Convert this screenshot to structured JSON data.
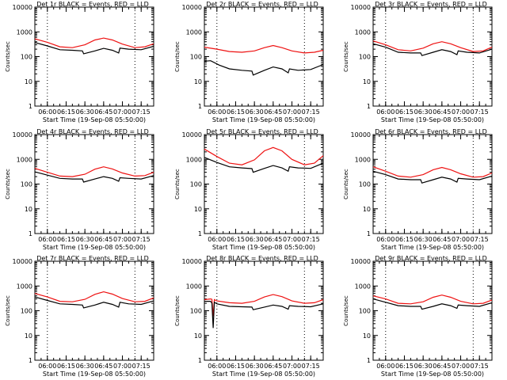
{
  "colors": {
    "events": "#000000",
    "lld": "#ee1111",
    "axes": "#000000",
    "background": "#ffffff"
  },
  "chart_data": [
    {
      "type": "line",
      "title": "Det 1r BLACK = Events, RED = LLD",
      "xlabel": "Start Time (19-Sep-08 05:50:00)",
      "ylabel": "Counts/sec",
      "yscale": "log",
      "ylim": [
        1,
        10000
      ],
      "xlim": [
        "05:50",
        "07:25"
      ],
      "xticks": [
        "06:00",
        "06:15",
        "06:30",
        "06:45",
        "07:00",
        "07:15"
      ],
      "yticks": [
        "1",
        "10",
        "100",
        "1000",
        "10000"
      ],
      "vlines": [
        "06:00",
        "07:10"
      ],
      "series": [
        {
          "name": "LLD",
          "color": "red",
          "x": [
            "05:50",
            "06:00",
            "06:10",
            "06:20",
            "06:30",
            "06:38",
            "06:45",
            "06:52",
            "07:00",
            "07:10",
            "07:18",
            "07:25"
          ],
          "y": [
            520,
            380,
            250,
            230,
            300,
            470,
            560,
            470,
            320,
            230,
            250,
            330
          ]
        },
        {
          "name": "Events",
          "color": "black",
          "x": [
            "05:50",
            "06:00",
            "06:10",
            "06:20",
            "06:28",
            "06:29",
            "06:38",
            "06:45",
            "06:52",
            "06:57",
            "06:58",
            "07:05",
            "07:15",
            "07:25"
          ],
          "y": [
            370,
            270,
            190,
            180,
            170,
            130,
            170,
            215,
            180,
            140,
            220,
            200,
            190,
            260
          ]
        }
      ]
    },
    {
      "type": "line",
      "title": "Det 2r BLACK = Events, RED = LLD",
      "xlabel": "Start Time (19-Sep-08 05:50:00)",
      "ylabel": "Counts/sec",
      "yscale": "log",
      "ylim": [
        1,
        10000
      ],
      "xlim": [
        "05:50",
        "07:25"
      ],
      "xticks": [
        "06:00",
        "06:15",
        "06:30",
        "06:45",
        "07:00",
        "07:15"
      ],
      "yticks": [
        "1",
        "10",
        "100",
        "1000",
        "10000"
      ],
      "vlines": [
        "06:00",
        "07:10"
      ],
      "series": [
        {
          "name": "LLD",
          "color": "red",
          "x": [
            "05:50",
            "06:00",
            "06:10",
            "06:20",
            "06:30",
            "06:38",
            "06:45",
            "06:52",
            "07:00",
            "07:10",
            "07:18",
            "07:25"
          ],
          "y": [
            240,
            200,
            160,
            150,
            170,
            230,
            280,
            230,
            170,
            140,
            150,
            180
          ]
        },
        {
          "name": "Events",
          "color": "black",
          "x": [
            "05:50",
            "05:55",
            "06:02",
            "06:10",
            "06:20",
            "06:28",
            "06:29",
            "06:38",
            "06:45",
            "06:52",
            "06:57",
            "06:58",
            "07:05",
            "07:15",
            "07:25"
          ],
          "y": [
            65,
            68,
            45,
            32,
            28,
            26,
            18,
            28,
            38,
            32,
            22,
            32,
            28,
            30,
            48
          ]
        }
      ]
    },
    {
      "type": "line",
      "title": "Det 3r BLACK = Events, RED = LLD",
      "xlabel": "Start Time (19-Sep-08 05:50:00)",
      "ylabel": "Counts/sec",
      "yscale": "log",
      "ylim": [
        1,
        10000
      ],
      "xlim": [
        "05:50",
        "07:25"
      ],
      "xticks": [
        "06:00",
        "06:15",
        "06:30",
        "06:45",
        "07:00",
        "07:15"
      ],
      "yticks": [
        "1",
        "10",
        "100",
        "1000",
        "10000"
      ],
      "vlines": [
        "06:00",
        "07:10"
      ],
      "series": [
        {
          "name": "LLD",
          "color": "red",
          "x": [
            "05:50",
            "06:00",
            "06:10",
            "06:20",
            "06:30",
            "06:38",
            "06:45",
            "06:52",
            "07:00",
            "07:10",
            "07:18",
            "07:25"
          ],
          "y": [
            430,
            300,
            190,
            170,
            220,
            330,
            400,
            330,
            230,
            160,
            170,
            240
          ]
        },
        {
          "name": "Events",
          "color": "black",
          "x": [
            "05:50",
            "06:00",
            "06:10",
            "06:20",
            "06:28",
            "06:29",
            "06:38",
            "06:45",
            "06:52",
            "06:57",
            "06:58",
            "07:05",
            "07:15",
            "07:25"
          ],
          "y": [
            330,
            240,
            150,
            140,
            140,
            110,
            150,
            190,
            160,
            120,
            170,
            150,
            140,
            200
          ]
        }
      ]
    },
    {
      "type": "line",
      "title": "Det 4r BLACK = Events, RED = LLD",
      "xlabel": "Start Time (19-Sep-08 05:50:00)",
      "ylabel": "Counts/sec",
      "yscale": "log",
      "ylim": [
        1,
        10000
      ],
      "xlim": [
        "05:50",
        "07:25"
      ],
      "xticks": [
        "06:00",
        "06:15",
        "06:30",
        "06:45",
        "07:00",
        "07:15"
      ],
      "yticks": [
        "1",
        "10",
        "100",
        "1000",
        "10000"
      ],
      "vlines": [
        "06:00",
        "07:10"
      ],
      "series": [
        {
          "name": "LLD",
          "color": "red",
          "x": [
            "05:50",
            "06:00",
            "06:10",
            "06:20",
            "06:30",
            "06:38",
            "06:45",
            "06:52",
            "07:00",
            "07:10",
            "07:18",
            "07:25"
          ],
          "y": [
            430,
            300,
            210,
            200,
            250,
            400,
            500,
            410,
            280,
            210,
            220,
            300
          ]
        },
        {
          "name": "Events",
          "color": "black",
          "x": [
            "05:50",
            "06:00",
            "06:10",
            "06:20",
            "06:28",
            "06:29",
            "06:38",
            "06:45",
            "06:52",
            "06:57",
            "06:58",
            "07:05",
            "07:15",
            "07:25"
          ],
          "y": [
            310,
            230,
            170,
            160,
            160,
            120,
            160,
            200,
            170,
            130,
            180,
            170,
            160,
            220
          ]
        }
      ]
    },
    {
      "type": "line",
      "title": "Det 5r BLACK = Events, RED = LLD",
      "xlabel": "Start Time (19-Sep-08 05:50:00)",
      "ylabel": "Counts/sec",
      "yscale": "log",
      "ylim": [
        1,
        10000
      ],
      "xlim": [
        "05:50",
        "07:25"
      ],
      "xticks": [
        "06:00",
        "06:15",
        "06:30",
        "06:45",
        "07:00",
        "07:15"
      ],
      "yticks": [
        "1",
        "10",
        "100",
        "1000",
        "10000"
      ],
      "vlines": [
        "06:00",
        "07:10"
      ],
      "series": [
        {
          "name": "LLD",
          "color": "red",
          "x": [
            "05:50",
            "06:00",
            "06:10",
            "06:20",
            "06:30",
            "06:38",
            "06:45",
            "06:52",
            "07:00",
            "07:10",
            "07:18",
            "07:25"
          ],
          "y": [
            2600,
            1300,
            700,
            600,
            950,
            2200,
            3000,
            2200,
            1000,
            600,
            700,
            1400
          ]
        },
        {
          "name": "Events",
          "color": "black",
          "x": [
            "05:50",
            "06:00",
            "06:10",
            "06:20",
            "06:28",
            "06:29",
            "06:38",
            "06:45",
            "06:52",
            "06:57",
            "06:58",
            "07:05",
            "07:15",
            "07:25"
          ],
          "y": [
            1200,
            750,
            500,
            450,
            420,
            300,
            430,
            560,
            450,
            330,
            500,
            450,
            430,
            700
          ]
        }
      ]
    },
    {
      "type": "line",
      "title": "Det 6r BLACK = Events, RED = LLD",
      "xlabel": "Start Time (19-Sep-08 05:50:00)",
      "ylabel": "Counts/sec",
      "yscale": "log",
      "ylim": [
        1,
        10000
      ],
      "xlim": [
        "05:50",
        "07:25"
      ],
      "xticks": [
        "06:00",
        "06:15",
        "06:30",
        "06:45",
        "07:00",
        "07:15"
      ],
      "yticks": [
        "1",
        "10",
        "100",
        "1000",
        "10000"
      ],
      "vlines": [
        "06:00",
        "07:10"
      ],
      "series": [
        {
          "name": "LLD",
          "color": "red",
          "x": [
            "05:50",
            "06:00",
            "06:10",
            "06:20",
            "06:30",
            "06:38",
            "06:45",
            "06:52",
            "07:00",
            "07:10",
            "07:18",
            "07:25"
          ],
          "y": [
            500,
            330,
            210,
            190,
            240,
            380,
            470,
            380,
            260,
            190,
            200,
            280
          ]
        },
        {
          "name": "Events",
          "color": "black",
          "x": [
            "05:50",
            "06:00",
            "06:10",
            "06:20",
            "06:28",
            "06:29",
            "06:38",
            "06:45",
            "06:52",
            "06:57",
            "06:58",
            "07:05",
            "07:15",
            "07:25"
          ],
          "y": [
            330,
            240,
            160,
            150,
            150,
            110,
            150,
            190,
            160,
            120,
            170,
            160,
            150,
            210
          ]
        }
      ]
    },
    {
      "type": "line",
      "title": "Det 7r BLACK = Events, RED = LLD",
      "xlabel": "Start Time (19-Sep-08 05:50:00)",
      "ylabel": "Counts/sec",
      "yscale": "log",
      "ylim": [
        1,
        10000
      ],
      "xlim": [
        "05:50",
        "07:25"
      ],
      "xticks": [
        "06:00",
        "06:15",
        "06:30",
        "06:45",
        "07:00",
        "07:15"
      ],
      "yticks": [
        "1",
        "10",
        "100",
        "1000",
        "10000"
      ],
      "vlines": [
        "06:00",
        "07:10"
      ],
      "series": [
        {
          "name": "LLD",
          "color": "red",
          "x": [
            "05:50",
            "06:00",
            "06:10",
            "06:20",
            "06:30",
            "06:38",
            "06:45",
            "06:52",
            "07:00",
            "07:10",
            "07:18",
            "07:25"
          ],
          "y": [
            500,
            360,
            240,
            230,
            290,
            460,
            580,
            470,
            310,
            230,
            240,
            330
          ]
        },
        {
          "name": "Events",
          "color": "black",
          "x": [
            "05:50",
            "06:00",
            "06:10",
            "06:20",
            "06:28",
            "06:29",
            "06:38",
            "06:45",
            "06:52",
            "06:57",
            "06:58",
            "07:05",
            "07:15",
            "07:25"
          ],
          "y": [
            360,
            260,
            190,
            180,
            170,
            130,
            170,
            220,
            180,
            140,
            220,
            190,
            180,
            250
          ]
        }
      ]
    },
    {
      "type": "line",
      "title": "Det 8r BLACK = Events, RED = LLD",
      "xlabel": "Start Time (19-Sep-08 05:50:00)",
      "ylabel": "Counts/sec",
      "yscale": "log",
      "ylim": [
        1,
        10000
      ],
      "xlim": [
        "05:50",
        "07:25"
      ],
      "xticks": [
        "06:00",
        "06:15",
        "06:30",
        "06:45",
        "07:00",
        "07:15"
      ],
      "yticks": [
        "1",
        "10",
        "100",
        "1000",
        "10000"
      ],
      "vlines": [
        "06:00",
        "07:10"
      ],
      "series": [
        {
          "name": "LLD",
          "color": "red",
          "x": [
            "05:50",
            "05:55",
            "05:56",
            "05:57",
            "05:58",
            "06:00",
            "06:10",
            "06:20",
            "06:30",
            "06:38",
            "06:45",
            "06:52",
            "07:00",
            "07:10",
            "07:18",
            "07:25"
          ],
          "y": [
            280,
            300,
            290,
            60,
            280,
            250,
            210,
            200,
            240,
            360,
            450,
            370,
            250,
            200,
            210,
            280
          ]
        },
        {
          "name": "Events",
          "color": "black",
          "x": [
            "05:50",
            "05:55",
            "05:56",
            "05:57",
            "05:58",
            "06:00",
            "06:10",
            "06:20",
            "06:28",
            "06:29",
            "06:38",
            "06:45",
            "06:52",
            "06:57",
            "06:58",
            "07:05",
            "07:15",
            "07:25"
          ],
          "y": [
            240,
            240,
            200,
            20,
            220,
            190,
            150,
            145,
            140,
            110,
            140,
            170,
            150,
            115,
            160,
            150,
            145,
            190
          ]
        }
      ]
    },
    {
      "type": "line",
      "title": "Det 9r BLACK = Events, RED = LLD",
      "xlabel": "Start Time (19-Sep-08 05:50:00)",
      "ylabel": "Counts/sec",
      "yscale": "log",
      "ylim": [
        1,
        10000
      ],
      "xlim": [
        "05:50",
        "07:25"
      ],
      "xticks": [
        "06:00",
        "06:15",
        "06:30",
        "06:45",
        "07:00",
        "07:15"
      ],
      "yticks": [
        "1",
        "10",
        "100",
        "1000",
        "10000"
      ],
      "vlines": [
        "06:00",
        "07:10"
      ],
      "series": [
        {
          "name": "LLD",
          "color": "red",
          "x": [
            "05:50",
            "06:00",
            "06:10",
            "06:20",
            "06:30",
            "06:38",
            "06:45",
            "06:52",
            "07:00",
            "07:10",
            "07:18",
            "07:25"
          ],
          "y": [
            400,
            300,
            200,
            190,
            230,
            350,
            430,
            350,
            240,
            190,
            200,
            270
          ]
        },
        {
          "name": "Events",
          "color": "black",
          "x": [
            "05:50",
            "06:00",
            "06:10",
            "06:20",
            "06:28",
            "06:29",
            "06:38",
            "06:45",
            "06:52",
            "06:57",
            "06:58",
            "07:05",
            "07:15",
            "07:25"
          ],
          "y": [
            300,
            220,
            160,
            150,
            150,
            115,
            150,
            190,
            160,
            125,
            170,
            160,
            150,
            210
          ]
        }
      ]
    }
  ]
}
